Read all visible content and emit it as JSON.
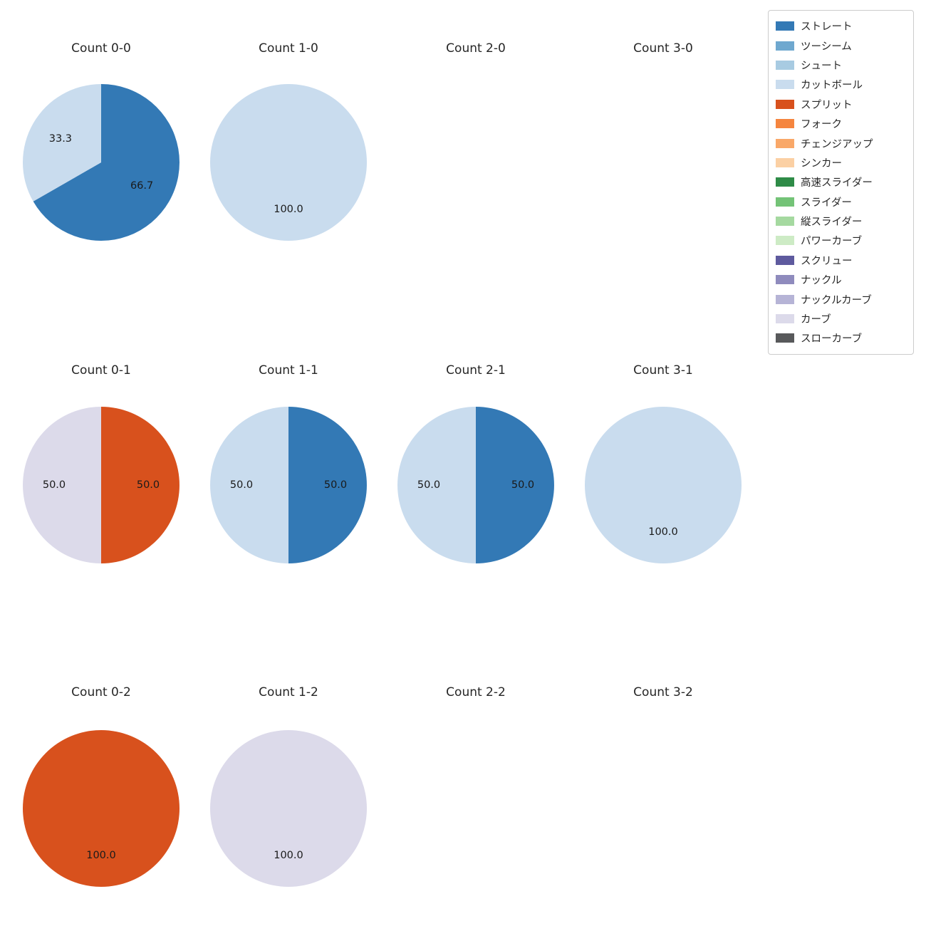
{
  "figure": {
    "background": "#ffffff",
    "text_color": "#262626",
    "label_color": "#1a1a1a"
  },
  "palette": {
    "ストレート": "#3379b5",
    "ツーシーム": "#6fa8cf",
    "シュート": "#a8cbe2",
    "カットボール": "#c9dcee",
    "スプリット": "#d8511d",
    "フォーク": "#f5853f",
    "チェンジアップ": "#f9a869",
    "シンカー": "#fbd0a4",
    "高速スライダー": "#2e8b47",
    "スライダー": "#74c377",
    "縦スライダー": "#a5d9a0",
    "パワーカーブ": "#cdebc5",
    "スクリュー": "#5e5a9e",
    "ナックル": "#8f8bbd",
    "ナックルカーブ": "#b6b4d6",
    "カーブ": "#dcdaea",
    "スローカーブ": "#58595b"
  },
  "legend": {
    "items": [
      {
        "label": "ストレート"
      },
      {
        "label": "ツーシーム"
      },
      {
        "label": "シュート"
      },
      {
        "label": "カットボール"
      },
      {
        "label": "スプリット"
      },
      {
        "label": "フォーク"
      },
      {
        "label": "チェンジアップ"
      },
      {
        "label": "シンカー"
      },
      {
        "label": "高速スライダー"
      },
      {
        "label": "スライダー"
      },
      {
        "label": "縦スライダー"
      },
      {
        "label": "パワーカーブ"
      },
      {
        "label": "スクリュー"
      },
      {
        "label": "ナックル"
      },
      {
        "label": "ナックルカーブ"
      },
      {
        "label": "カーブ"
      },
      {
        "label": "スローカーブ"
      }
    ]
  },
  "chart_data": [
    {
      "type": "pie",
      "title": "Count 0-0",
      "labels": [
        "ストレート",
        "カットボール"
      ],
      "values": [
        66.7,
        33.3
      ]
    },
    {
      "type": "pie",
      "title": "Count 1-0",
      "labels": [
        "カットボール"
      ],
      "values": [
        100.0
      ]
    },
    {
      "type": "pie",
      "title": "Count 2-0",
      "labels": [],
      "values": []
    },
    {
      "type": "pie",
      "title": "Count 3-0",
      "labels": [],
      "values": []
    },
    {
      "type": "pie",
      "title": "Count 0-1",
      "labels": [
        "スプリット",
        "カーブ"
      ],
      "values": [
        50.0,
        50.0
      ]
    },
    {
      "type": "pie",
      "title": "Count 1-1",
      "labels": [
        "ストレート",
        "カットボール"
      ],
      "values": [
        50.0,
        50.0
      ]
    },
    {
      "type": "pie",
      "title": "Count 2-1",
      "labels": [
        "ストレート",
        "カットボール"
      ],
      "values": [
        50.0,
        50.0
      ]
    },
    {
      "type": "pie",
      "title": "Count 3-1",
      "labels": [
        "カットボール"
      ],
      "values": [
        100.0
      ]
    },
    {
      "type": "pie",
      "title": "Count 0-2",
      "labels": [
        "スプリット"
      ],
      "values": [
        100.0
      ]
    },
    {
      "type": "pie",
      "title": "Count 1-2",
      "labels": [
        "カーブ"
      ],
      "values": [
        100.0
      ]
    },
    {
      "type": "pie",
      "title": "Count 2-2",
      "labels": [],
      "values": []
    },
    {
      "type": "pie",
      "title": "Count 3-2",
      "labels": [],
      "values": []
    }
  ]
}
